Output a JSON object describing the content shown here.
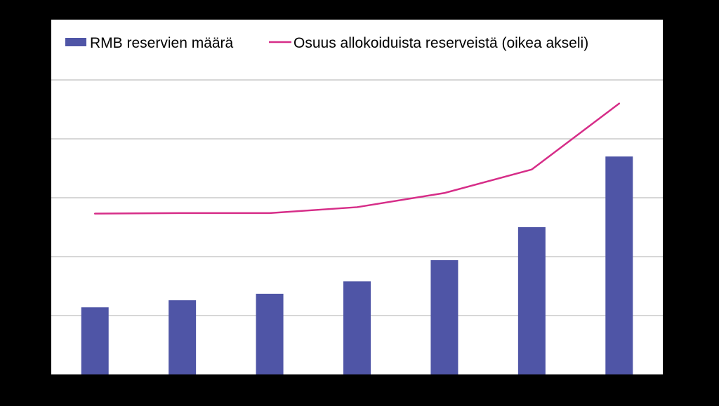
{
  "chart_data": {
    "type": "bar",
    "title": "",
    "xlabel": "",
    "ylabel": "",
    "categories": [
      "",
      "",
      "",
      "",
      "",
      "",
      ""
    ],
    "series": [
      {
        "name": "RMB reservien määrä",
        "kind": "bar",
        "axis": "left",
        "color": "#4f55a6",
        "values": [
          1.14,
          1.26,
          1.37,
          1.58,
          1.94,
          2.5,
          3.7
        ]
      },
      {
        "name": "Osuus allokoiduista reserveistä (oikea akseli)",
        "kind": "line",
        "axis": "right",
        "color": "#d62d88",
        "values": [
          2.73,
          2.74,
          2.74,
          2.84,
          3.08,
          3.48,
          4.6
        ]
      }
    ],
    "ylim": [
      -5,
      0
    ],
    "y2lim": [
      -5,
      0
    ],
    "grid": true,
    "gridlines_count": 6,
    "legend_position": "top",
    "axis_tick_labels_visible": false
  }
}
